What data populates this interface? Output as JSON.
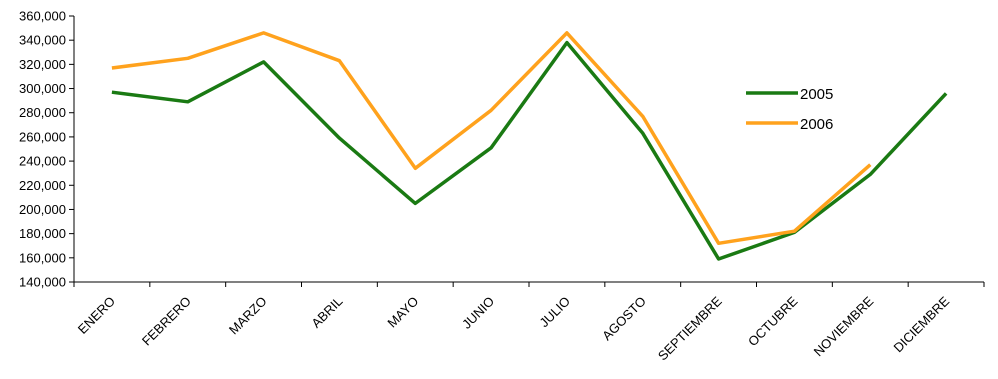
{
  "chart_data": {
    "type": "line",
    "title": "",
    "xlabel": "",
    "ylabel": "",
    "categories": [
      "ENERO",
      "FEBRERO",
      "MARZO",
      "ABRIL",
      "MAYO",
      "JUNIO",
      "JULIO",
      "AGOSTO",
      "SEPTIEMBRE",
      "OCTUBRE",
      "NOVIEMBRE",
      "DICIEMBRE"
    ],
    "y_ticks": [
      "140,000",
      "160,000",
      "180,000",
      "200,000",
      "220,000",
      "240,000",
      "260,000",
      "280,000",
      "300,000",
      "320,000",
      "340,000",
      "360,000"
    ],
    "ylim": [
      140000,
      360000
    ],
    "grid": false,
    "legend_position": "right",
    "series": [
      {
        "name": "2005",
        "color": "#1a7a13",
        "values": [
          297000,
          289000,
          322000,
          259000,
          205000,
          251000,
          338000,
          263000,
          159000,
          181000,
          229000,
          296000
        ]
      },
      {
        "name": "2006",
        "color": "#ffa21d",
        "values": [
          317000,
          325000,
          346000,
          323000,
          234000,
          282000,
          346000,
          277000,
          172000,
          182000,
          237000,
          null
        ]
      }
    ]
  }
}
